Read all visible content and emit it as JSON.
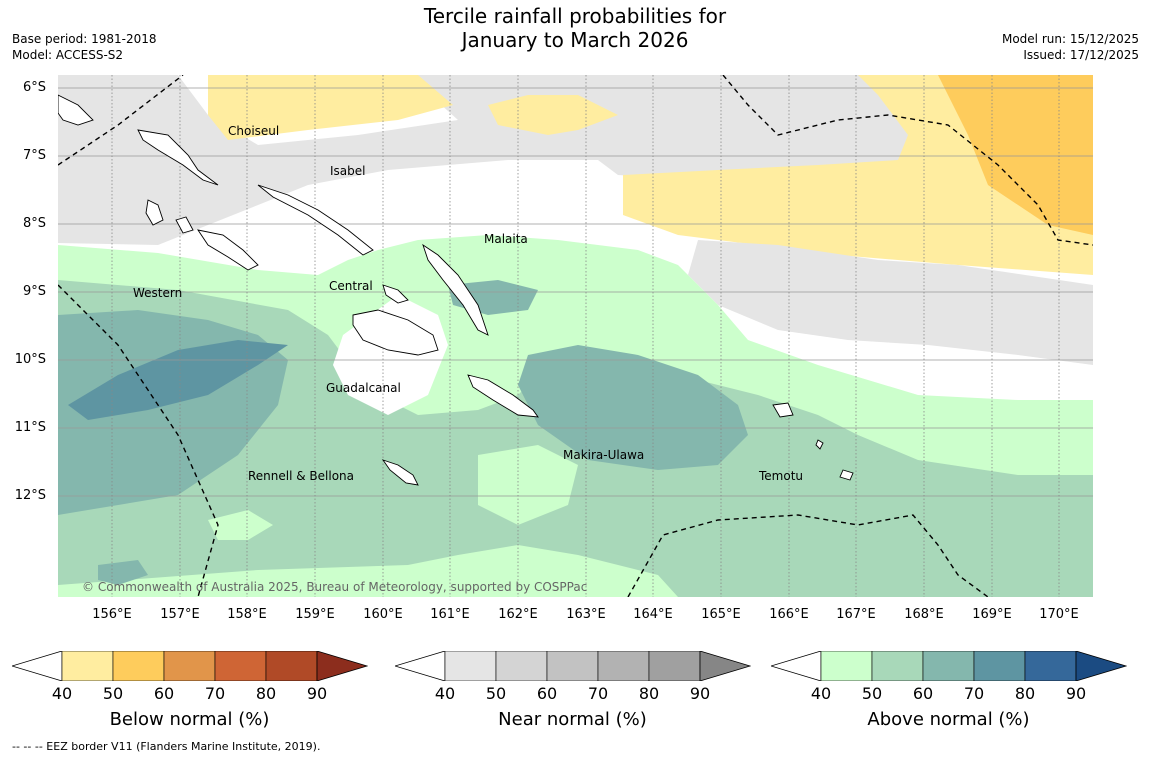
{
  "title_line1": "Tercile rainfall probabilities for",
  "title_line2": "January to March 2026",
  "base_period": "Base period: 1981-2018",
  "model": "Model: ACCESS-S2",
  "model_run": "Model run: 15/12/2025",
  "issued": "Issued: 17/12/2025",
  "lat_labels": [
    "6°S",
    "7°S",
    "8°S",
    "9°S",
    "10°S",
    "11°S",
    "12°S"
  ],
  "lon_labels": [
    "156°E",
    "157°E",
    "158°E",
    "159°E",
    "160°E",
    "161°E",
    "162°E",
    "163°E",
    "164°E",
    "165°E",
    "166°E",
    "167°E",
    "168°E",
    "169°E",
    "170°E"
  ],
  "regions": [
    "Choiseul",
    "Isabel",
    "Malaita",
    "Western",
    "Central",
    "Guadalcanal",
    "Makira-Ulawa",
    "Rennell & Bellona",
    "Temotu"
  ],
  "copyright": "© Commonwealth of Australia 2025, Bureau of Meteorology, supported by COSPPac",
  "colorbars": [
    {
      "title": "Below normal (%)",
      "ticks": [
        "40",
        "50",
        "60",
        "70",
        "80",
        "90"
      ],
      "colors": [
        "#ffeda0",
        "#fecc5c",
        "#e1954a",
        "#cf6535",
        "#b04a27",
        "#8c2d1d"
      ]
    },
    {
      "title": "Near normal (%)",
      "ticks": [
        "40",
        "50",
        "60",
        "70",
        "80",
        "90"
      ],
      "colors": [
        "#e5e5e5",
        "#d4d4d4",
        "#c2c2c2",
        "#b2b2b2",
        "#a0a0a0",
        "#868686"
      ]
    },
    {
      "title": "Above normal (%)",
      "ticks": [
        "40",
        "50",
        "60",
        "70",
        "80",
        "90"
      ],
      "colors": [
        "#ccffcc",
        "#a8d8b9",
        "#84b7ad",
        "#5e95a2",
        "#35689a",
        "#1b4b82"
      ]
    }
  ],
  "footnote": "--  --  -- EEZ border V11 (Flanders Marine Institute, 2019)."
}
